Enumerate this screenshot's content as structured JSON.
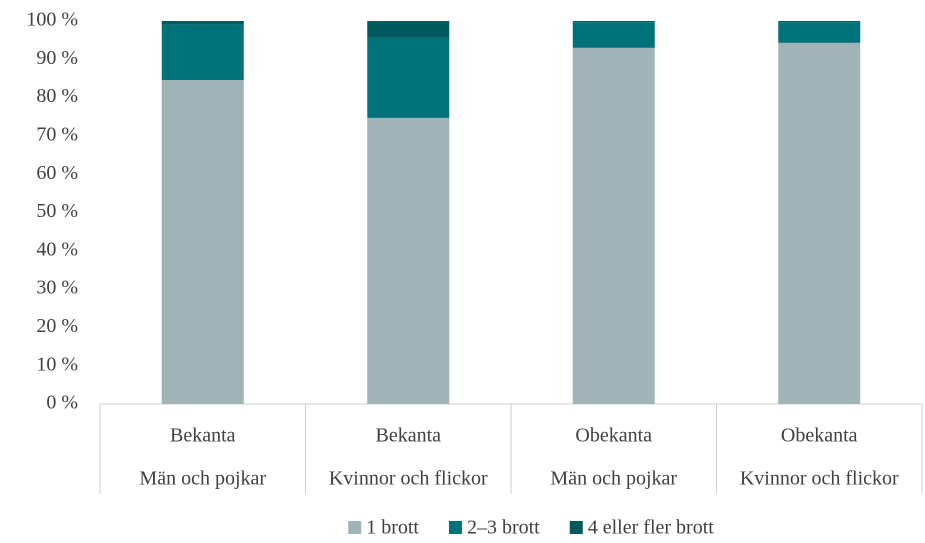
{
  "chart_data": {
    "type": "stacked_bar",
    "categories": [
      [
        "Bekanta",
        "Män och pojkar"
      ],
      [
        "Bekanta",
        "Kvinnor och flickor"
      ],
      [
        "Obekanta",
        "Män och pojkar"
      ],
      [
        "Obekanta",
        "Kvinnor och flickor"
      ]
    ],
    "series": [
      {
        "name": "1 brott",
        "color": "#a0b4b8",
        "values": [
          84.6,
          74.7,
          93.0,
          94.3
        ]
      },
      {
        "name": "2–3 brott",
        "color": "#00737a",
        "values": [
          14.4,
          20.9,
          6.7,
          5.4
        ]
      },
      {
        "name": "4 eller fler brott",
        "color": "#005a5e",
        "values": [
          1.0,
          4.4,
          0.3,
          0.3
        ]
      }
    ],
    "ylim": [
      0,
      100
    ],
    "yticks": [
      {
        "value": 0,
        "label": "0 %"
      },
      {
        "value": 10,
        "label": "10 %"
      },
      {
        "value": 20,
        "label": "20 %"
      },
      {
        "value": 30,
        "label": "30 %"
      },
      {
        "value": 40,
        "label": "40 %"
      },
      {
        "value": 50,
        "label": "50 %"
      },
      {
        "value": 60,
        "label": "60 %"
      },
      {
        "value": 70,
        "label": "70 %"
      },
      {
        "value": 80,
        "label": "80 %"
      },
      {
        "value": 90,
        "label": "90 %"
      },
      {
        "value": 100,
        "label": "100 %"
      }
    ],
    "grid": false,
    "legend": "bottom"
  }
}
